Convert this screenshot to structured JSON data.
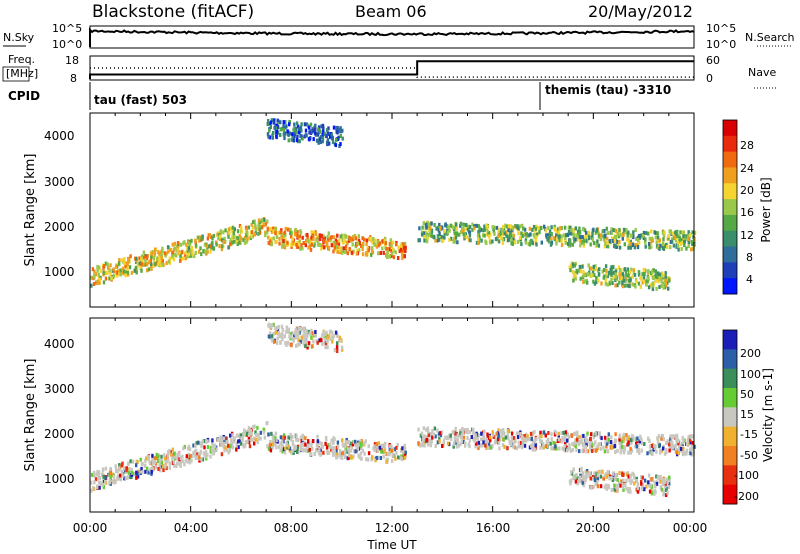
{
  "header": {
    "station": "Blackstone (fitACF)",
    "beam": "Beam 06",
    "date": "20/May/2012"
  },
  "noise_panel": {
    "left_label": "N.Sky",
    "left_ticks": [
      "10^5",
      "10^0"
    ],
    "right_label": "N.Search",
    "right_ticks": [
      "10^5",
      "10^0"
    ]
  },
  "freq_panel": {
    "left_label_line1": "Freq.",
    "left_label_line2": "[MHz]",
    "left_ticks": [
      "18",
      "8"
    ],
    "right_label": "Nave",
    "right_ticks": [
      "60",
      "0"
    ]
  },
  "cpid": {
    "label": "CPID",
    "segments": [
      {
        "name": "tau (fast) 503",
        "start_hour": 0
      },
      {
        "name": "themis (tau) -3310",
        "start_hour": 18
      }
    ]
  },
  "power_panel": {
    "ylabel": "Slant Range [km]",
    "y_ticks": [
      "4000",
      "3000",
      "2000",
      "1000"
    ],
    "colorbar_label": "Power [dB]",
    "colorbar_ticks": [
      "28",
      "24",
      "20",
      "16",
      "12",
      "8",
      "4"
    ],
    "colors": [
      "#0016ff",
      "#1f3fb8",
      "#2f6e9a",
      "#3a8e6c",
      "#55a843",
      "#9ac84a",
      "#f5d431",
      "#f0a020",
      "#f06a10",
      "#ea2a0c",
      "#d80000"
    ]
  },
  "velocity_panel": {
    "ylabel": "Slant Range [km]",
    "y_ticks": [
      "4000",
      "3000",
      "2000",
      "1000"
    ],
    "colorbar_label": "Velocity [m s-1]",
    "colorbar_ticks": [
      "200",
      "100",
      "50",
      "15",
      "-15",
      "-50",
      "-100",
      "-200"
    ],
    "colors": [
      "#1b1fb8",
      "#2b5fa8",
      "#3a8e5a",
      "#66cc33",
      "#c8c8c0",
      "#f0b030",
      "#f08020",
      "#e83010",
      "#e80000"
    ],
    "ground_scatter_color": "#c8c8c0"
  },
  "x_axis": {
    "label": "Time UT",
    "ticks": [
      "00:00",
      "04:00",
      "08:00",
      "12:00",
      "16:00",
      "20:00",
      "00:00"
    ]
  },
  "chart_data": {
    "type": "heatmap",
    "title": "Blackstone (fitACF)  Beam 06  20/May/2012",
    "xlabel": "Time UT",
    "ylabel": "Slant Range [km]",
    "xlim_hours": [
      0,
      24
    ],
    "ylim_km": [
      180,
      4500
    ],
    "scatter_bands": [
      {
        "start_hour": 0.0,
        "end_hour": 7.0,
        "range_start_km": 900,
        "range_end_km": 2000,
        "typical_power_db": 18
      },
      {
        "start_hour": 7.0,
        "end_hour": 12.5,
        "range_start_km": 1800,
        "range_end_km": 1500,
        "typical_power_db": 22
      },
      {
        "start_hour": 13.0,
        "end_hour": 24.0,
        "range_start_km": 1900,
        "range_end_km": 1700,
        "typical_power_db": 14
      },
      {
        "start_hour": 7.0,
        "end_hour": 10.0,
        "range_start_km": 4200,
        "range_end_km": 4000,
        "typical_power_db": 6
      },
      {
        "start_hour": 19.0,
        "end_hour": 23.0,
        "range_start_km": 1000,
        "range_end_km": 800,
        "typical_power_db": 16
      }
    ],
    "frequency_mhz": [
      {
        "start_hour": 0,
        "end_hour": 13,
        "value": 10.5
      },
      {
        "start_hour": 13,
        "end_hour": 24,
        "value": 16.5
      }
    ],
    "nave": [
      {
        "start_hour": 0,
        "end_hour": 13,
        "value": 30
      },
      {
        "start_hour": 13,
        "end_hour": 24,
        "value": 5
      }
    ]
  }
}
